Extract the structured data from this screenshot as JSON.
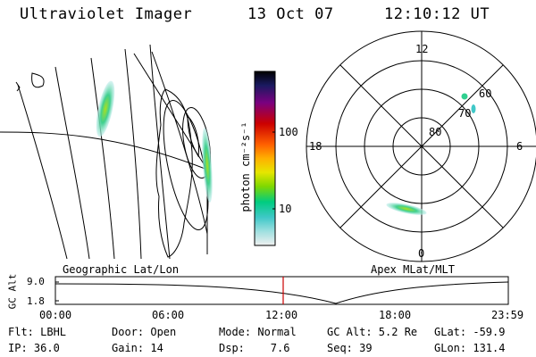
{
  "header": {
    "title": "Ultraviolet Imager",
    "date": "13 Oct 07",
    "time": "12:10:12 UT"
  },
  "geo_panel": {
    "title": "Geographic Lat/Lon"
  },
  "polar_panel": {
    "title": "Apex MLat/MLT",
    "mlt_labels": {
      "top": "12",
      "bottom": "0",
      "left": "18",
      "right": "6"
    },
    "lat_labels": [
      "60",
      "70",
      "80"
    ]
  },
  "colorbar": {
    "unit_label": "photon cm⁻²s⁻¹",
    "ticks": [
      "100",
      "10"
    ],
    "scale": "log",
    "colors": [
      "#000000",
      "#1a1a60",
      "#7a0080",
      "#cc0000",
      "#ff6000",
      "#ffb000",
      "#e6e600",
      "#80d800",
      "#00cc80",
      "#40c8c8",
      "#a0e0e0",
      "#f0f0f0"
    ]
  },
  "altitude_plot": {
    "ylabel": "GC Alt",
    "yticks": [
      "9.0",
      "1.8"
    ],
    "xticks": [
      "00:00",
      "06:00",
      "12:00",
      "18:00",
      "23:59"
    ],
    "current_time_color": "#cc0000"
  },
  "info": {
    "filter": "Flt: LBHL",
    "ip": "IP: 36.0",
    "door": "Door: Open",
    "gain": "Gain: 14",
    "mode": "Mode: Normal",
    "dsp": "Dsp:    7.6",
    "gc_alt": "GC Alt: 5.2 Re",
    "seq": "Seq: 39",
    "glat": "GLat: -59.9",
    "glon": "GLon: 131.4"
  }
}
